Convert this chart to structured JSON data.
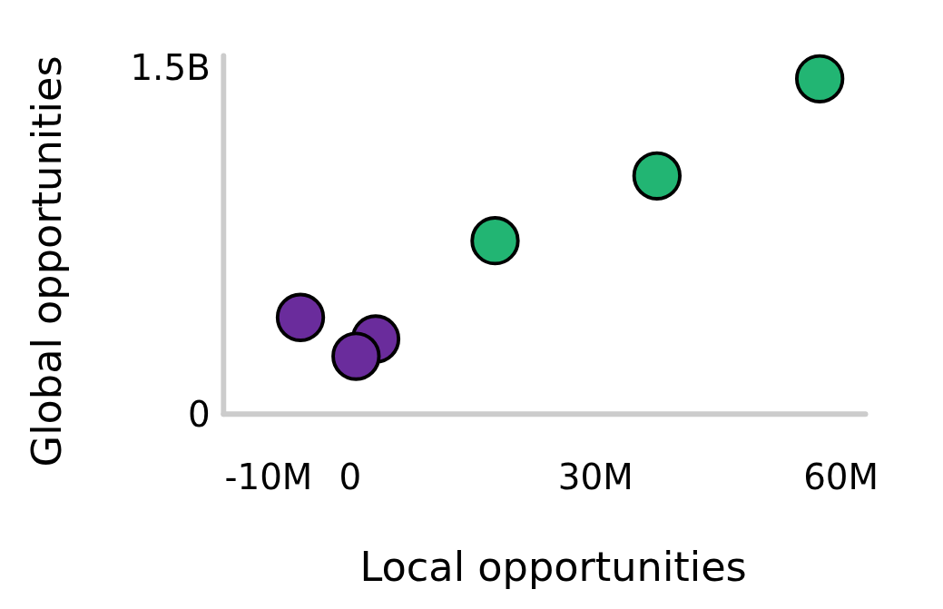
{
  "chart_data": {
    "type": "scatter",
    "xlabel": "Local opportunities",
    "ylabel": "Global opportunities",
    "xlim": [
      -15500000,
      63000000
    ],
    "ylim": [
      0,
      1550000000
    ],
    "xticks": [
      {
        "value": -10000000,
        "label": "-10M"
      },
      0,
      {
        "value": 30000000,
        "label": "30M"
      },
      {
        "value": 60000000,
        "label": "60M"
      }
    ],
    "yticks": [
      0,
      {
        "value": 1500000000,
        "label": "1.5B"
      }
    ],
    "grid": false,
    "marker": "circle",
    "series": [
      {
        "color": "#6a2c9c",
        "x": [
          -6100000,
          3100000,
          700000
        ],
        "values": [
          418000000,
          325000000,
          250000000
        ]
      },
      {
        "color": "#22b573",
        "x": [
          17700000,
          37500000,
          57400000
        ],
        "values": [
          750000000,
          1030000000,
          1450000000
        ]
      }
    ]
  }
}
